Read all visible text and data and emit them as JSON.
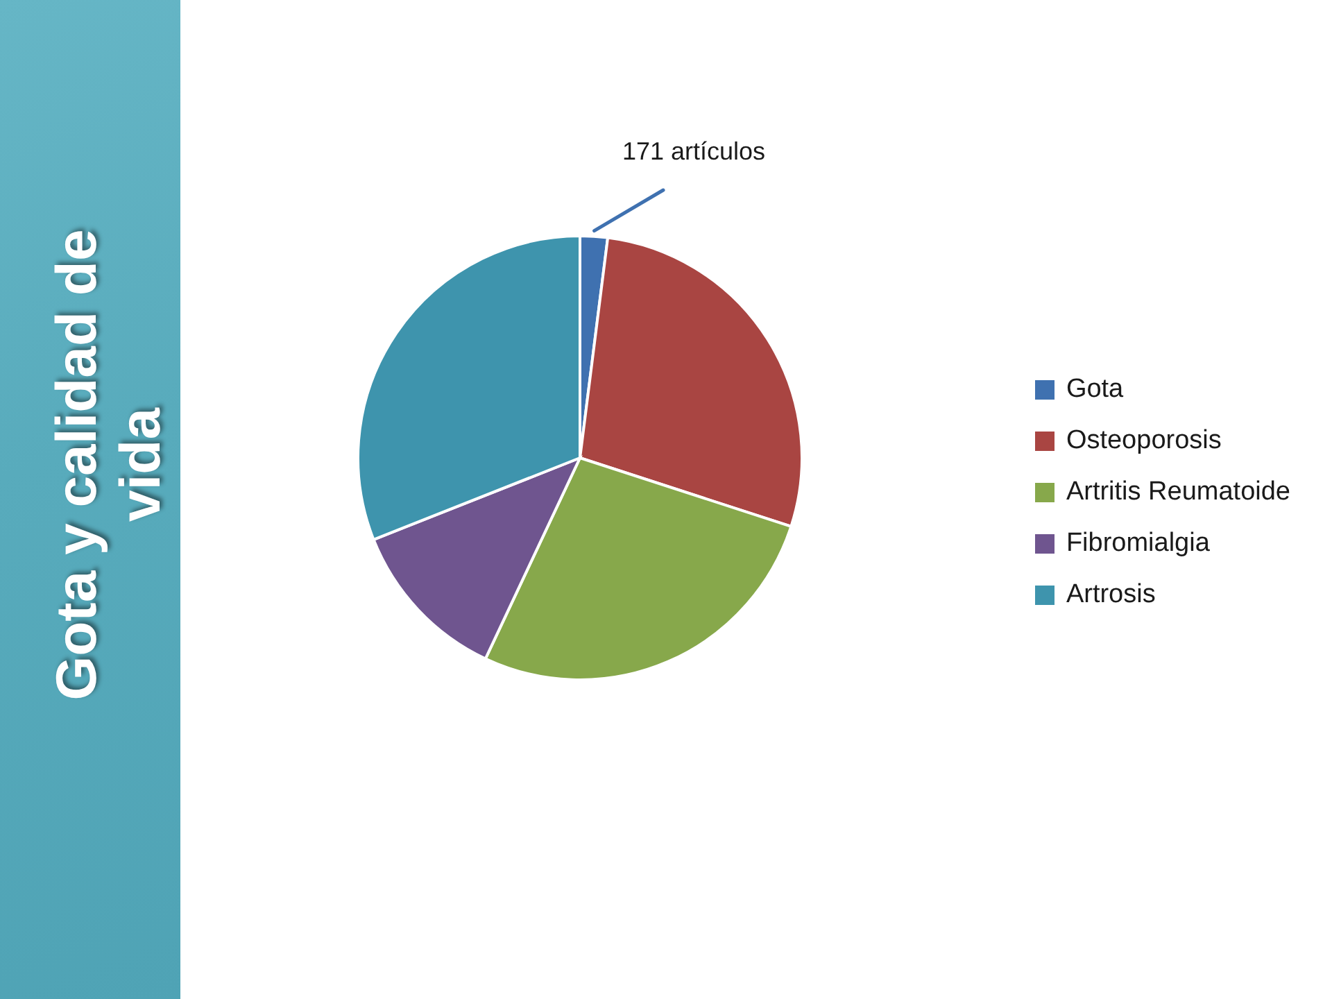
{
  "chart_data": {
    "type": "pie",
    "title": "Gota y calidad de vida",
    "categories": [
      "Gota",
      "Osteoporosis",
      "Artritis Reumatoide",
      "Fibromialgia",
      "Artrosis"
    ],
    "values": [
      2,
      28,
      27,
      12,
      31
    ],
    "colors": [
      "#3f71b0",
      "#a94542",
      "#87a84b",
      "#6f558f",
      "#3e94ad"
    ],
    "legend": "right",
    "annotations": [
      "171 artículos"
    ]
  }
}
